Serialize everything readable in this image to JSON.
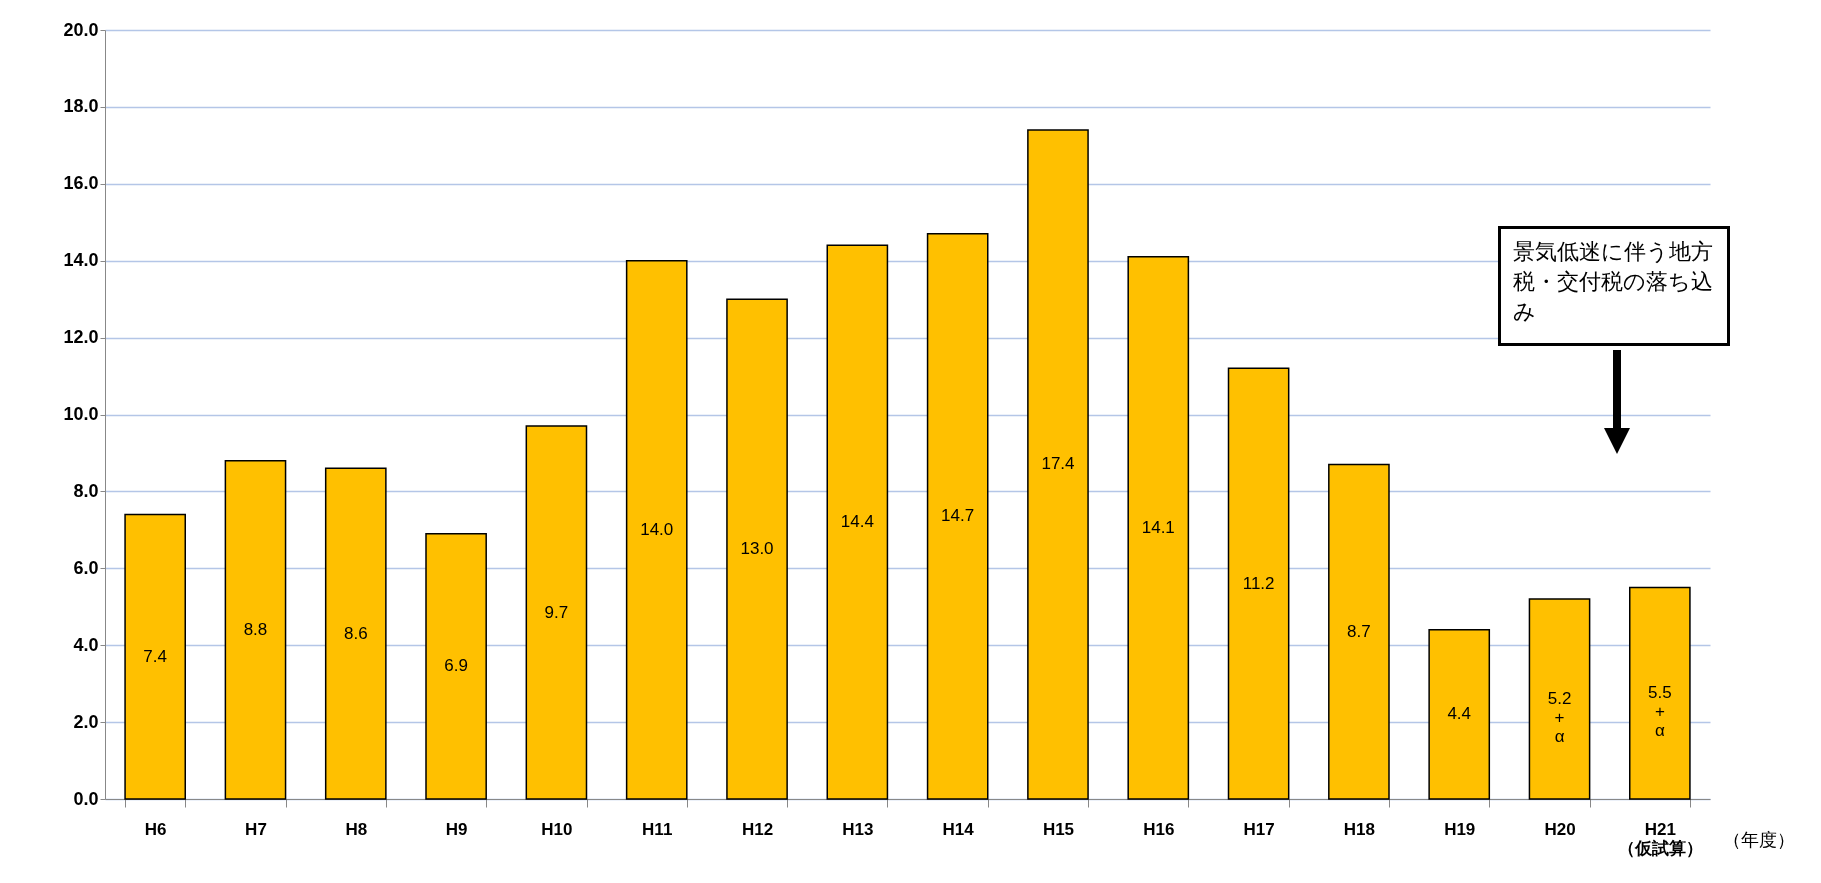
{
  "chart_data": {
    "type": "bar",
    "xlabel": "（年度）",
    "categories": [
      "H6",
      "H7",
      "H8",
      "H9",
      "H10",
      "H11",
      "H12",
      "H13",
      "H14",
      "H15",
      "H16",
      "H17",
      "H18",
      "H19",
      "H20",
      "H21\n（仮試算）"
    ],
    "values": [
      7.4,
      8.8,
      8.6,
      6.9,
      9.7,
      14.0,
      13.0,
      14.4,
      14.7,
      17.4,
      14.1,
      11.2,
      8.7,
      4.4,
      5.2,
      5.5
    ],
    "value_labels": [
      "7.4",
      "8.8",
      "8.6",
      "6.9",
      "9.7",
      "14.0",
      "13.0",
      "14.4",
      "14.7",
      "17.4",
      "14.1",
      "11.2",
      "8.7",
      "4.4",
      "5.2\n+\nα",
      "5.5\n+\nα"
    ],
    "color": "#ffc000",
    "ylim": [
      0,
      20
    ],
    "yticks": [
      {
        "value": 0,
        "label": "0.0"
      },
      {
        "value": 2,
        "label": "2.0"
      },
      {
        "value": 4,
        "label": "4.0"
      },
      {
        "value": 6,
        "label": "6.0"
      },
      {
        "value": 8,
        "label": "8.0"
      },
      {
        "value": 10,
        "label": "10.0"
      },
      {
        "value": 12,
        "label": "12.0"
      },
      {
        "value": 14,
        "label": "14.0"
      },
      {
        "value": 16,
        "label": "16.0"
      },
      {
        "value": 18,
        "label": "18.0"
      },
      {
        "value": 20,
        "label": "20.0"
      }
    ],
    "grid": "y",
    "annotations": [
      "景気低迷に伴う地方税・交付税の落ち込み"
    ]
  }
}
